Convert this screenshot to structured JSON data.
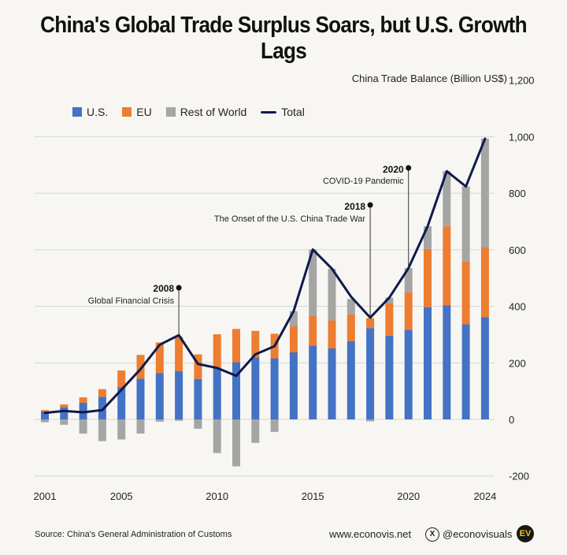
{
  "title": "China's Global Trade Surplus Soars, but U.S. Growth Lags",
  "footer": {
    "source": "Source: China's General Administration of Customs",
    "website": "www.econovis.net",
    "x_glyph": "X",
    "handle": "@econovisuals",
    "logo": "EV"
  },
  "colors": {
    "us": "#4472c4",
    "eu": "#ed7d31",
    "row": "#a5a5a5",
    "total": "#0d1b4d",
    "grid": "#d6d6d6",
    "background": "#f7f6f2"
  },
  "chart_data": {
    "type": "bar",
    "stacked": true,
    "ylabel": "China Trade Balance (Billion US$)",
    "ylim": [
      -200,
      1200
    ],
    "yticks": [
      -200,
      0,
      200,
      400,
      600,
      800,
      1000,
      1200
    ],
    "xtick_labels": [
      "2001",
      "2005",
      "2010",
      "2015",
      "2020",
      "2024"
    ],
    "legend": [
      "U.S.",
      "EU",
      "Rest of World",
      "Total"
    ],
    "categories": [
      2001,
      2002,
      2003,
      2004,
      2005,
      2006,
      2007,
      2008,
      2009,
      2010,
      2011,
      2012,
      2013,
      2014,
      2015,
      2016,
      2017,
      2018,
      2019,
      2020,
      2021,
      2022,
      2023,
      2024
    ],
    "series": [
      {
        "name": "U.S.",
        "values": [
          28,
          43,
          59,
          80,
          114,
          144,
          163,
          171,
          143,
          181,
          202,
          219,
          216,
          237,
          261,
          251,
          276,
          323,
          296,
          317,
          397,
          404,
          336,
          361
        ]
      },
      {
        "name": "EU",
        "values": [
          5,
          10,
          19,
          27,
          59,
          84,
          109,
          121,
          87,
          120,
          118,
          94,
          87,
          92,
          106,
          99,
          95,
          35,
          115,
          133,
          206,
          280,
          222,
          247
        ]
      },
      {
        "name": "Rest of World",
        "values": [
          -10,
          -19,
          -50,
          -77,
          -71,
          -50,
          -8,
          -5,
          -33,
          -119,
          -166,
          -83,
          -44,
          54,
          234,
          183,
          55,
          -7,
          20,
          85,
          80,
          194,
          266,
          385
        ]
      },
      {
        "name": "Total",
        "values": [
          23,
          30,
          25,
          33,
          105,
          178,
          264,
          298,
          196,
          182,
          154,
          230,
          259,
          383,
          601,
          533,
          434,
          360,
          431,
          535,
          683,
          878,
          824,
          993
        ]
      }
    ],
    "annotations": [
      {
        "year_label": "2008",
        "text": "Global Financial Crisis",
        "year": 2008,
        "value": 298
      },
      {
        "year_label": "2018",
        "text": "The Onset of the U.S. China Trade War",
        "year": 2018,
        "value": 360
      },
      {
        "year_label": "2020",
        "text": "COVID-19 Pandemic",
        "year": 2020,
        "value": 535
      }
    ]
  }
}
